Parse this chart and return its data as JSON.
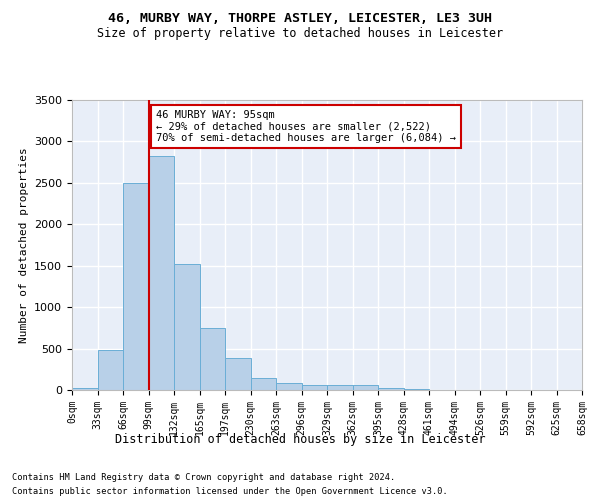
{
  "title_line1": "46, MURBY WAY, THORPE ASTLEY, LEICESTER, LE3 3UH",
  "title_line2": "Size of property relative to detached houses in Leicester",
  "xlabel": "Distribution of detached houses by size in Leicester",
  "ylabel": "Number of detached properties",
  "bar_values": [
    20,
    480,
    2500,
    2820,
    1520,
    750,
    390,
    145,
    80,
    55,
    55,
    55,
    20,
    10,
    0,
    0,
    0,
    0,
    0,
    0
  ],
  "bin_labels": [
    "0sqm",
    "33sqm",
    "66sqm",
    "99sqm",
    "132sqm",
    "165sqm",
    "197sqm",
    "230sqm",
    "263sqm",
    "296sqm",
    "329sqm",
    "362sqm",
    "395sqm",
    "428sqm",
    "461sqm",
    "494sqm",
    "526sqm",
    "559sqm",
    "592sqm",
    "625sqm",
    "658sqm"
  ],
  "bar_color": "#b8d0e8",
  "bar_edge_color": "#6aaed6",
  "background_color": "#e8eef8",
  "grid_color": "#ffffff",
  "vline_color": "#cc0000",
  "annotation_text": "46 MURBY WAY: 95sqm\n← 29% of detached houses are smaller (2,522)\n70% of semi-detached houses are larger (6,084) →",
  "annotation_box_color": "#ffffff",
  "annotation_edge_color": "#cc0000",
  "ylim": [
    0,
    3500
  ],
  "footnote1": "Contains HM Land Registry data © Crown copyright and database right 2024.",
  "footnote2": "Contains public sector information licensed under the Open Government Licence v3.0."
}
